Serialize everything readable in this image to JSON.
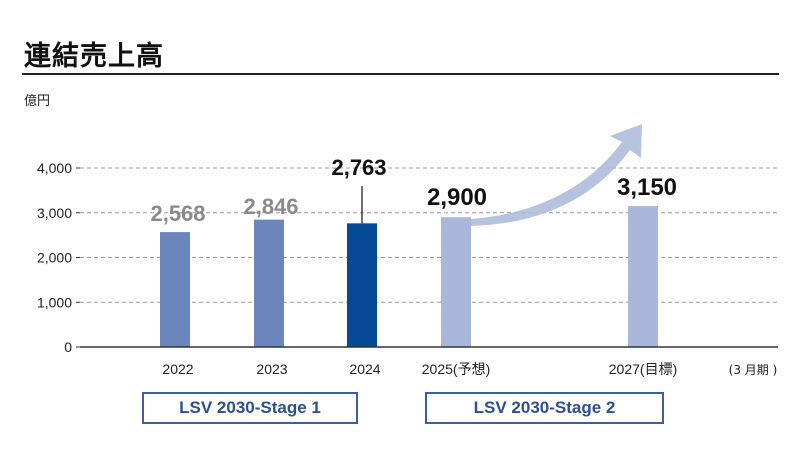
{
  "header": {
    "title": "連結売上高",
    "unit": "億円"
  },
  "chart_data": {
    "type": "bar",
    "title": "連結売上高",
    "ylabel": "億円",
    "ylim": [
      0,
      4500
    ],
    "yticks": [
      "0",
      "1,000",
      "2,000",
      "3,000",
      "4,000"
    ],
    "ytick_values": [
      0,
      1000,
      2000,
      3000,
      4000
    ],
    "grid": true,
    "categories": [
      "2022",
      "2023",
      "2024",
      "2025(予想)",
      "2027(目標)"
    ],
    "values": [
      2568,
      2846,
      2763,
      2900,
      3150
    ],
    "value_labels": [
      "2,568",
      "2,846",
      "2,763",
      "2,900",
      "3,150"
    ],
    "bar_kind": [
      "actual",
      "actual",
      "actual-current",
      "forecast",
      "target"
    ],
    "period_label": "(3 月期 )",
    "trend_arrow": true,
    "colors": {
      "actual": "#6b86bd",
      "actual_current": "#054a96",
      "forecast": "#a9b8da",
      "grid": "#9a9a9a",
      "axis": "#333333",
      "arrow": "#aebcdc"
    }
  },
  "stages": [
    {
      "label": "LSV 2030-Stage 1"
    },
    {
      "label": "LSV 2030-Stage 2"
    }
  ]
}
